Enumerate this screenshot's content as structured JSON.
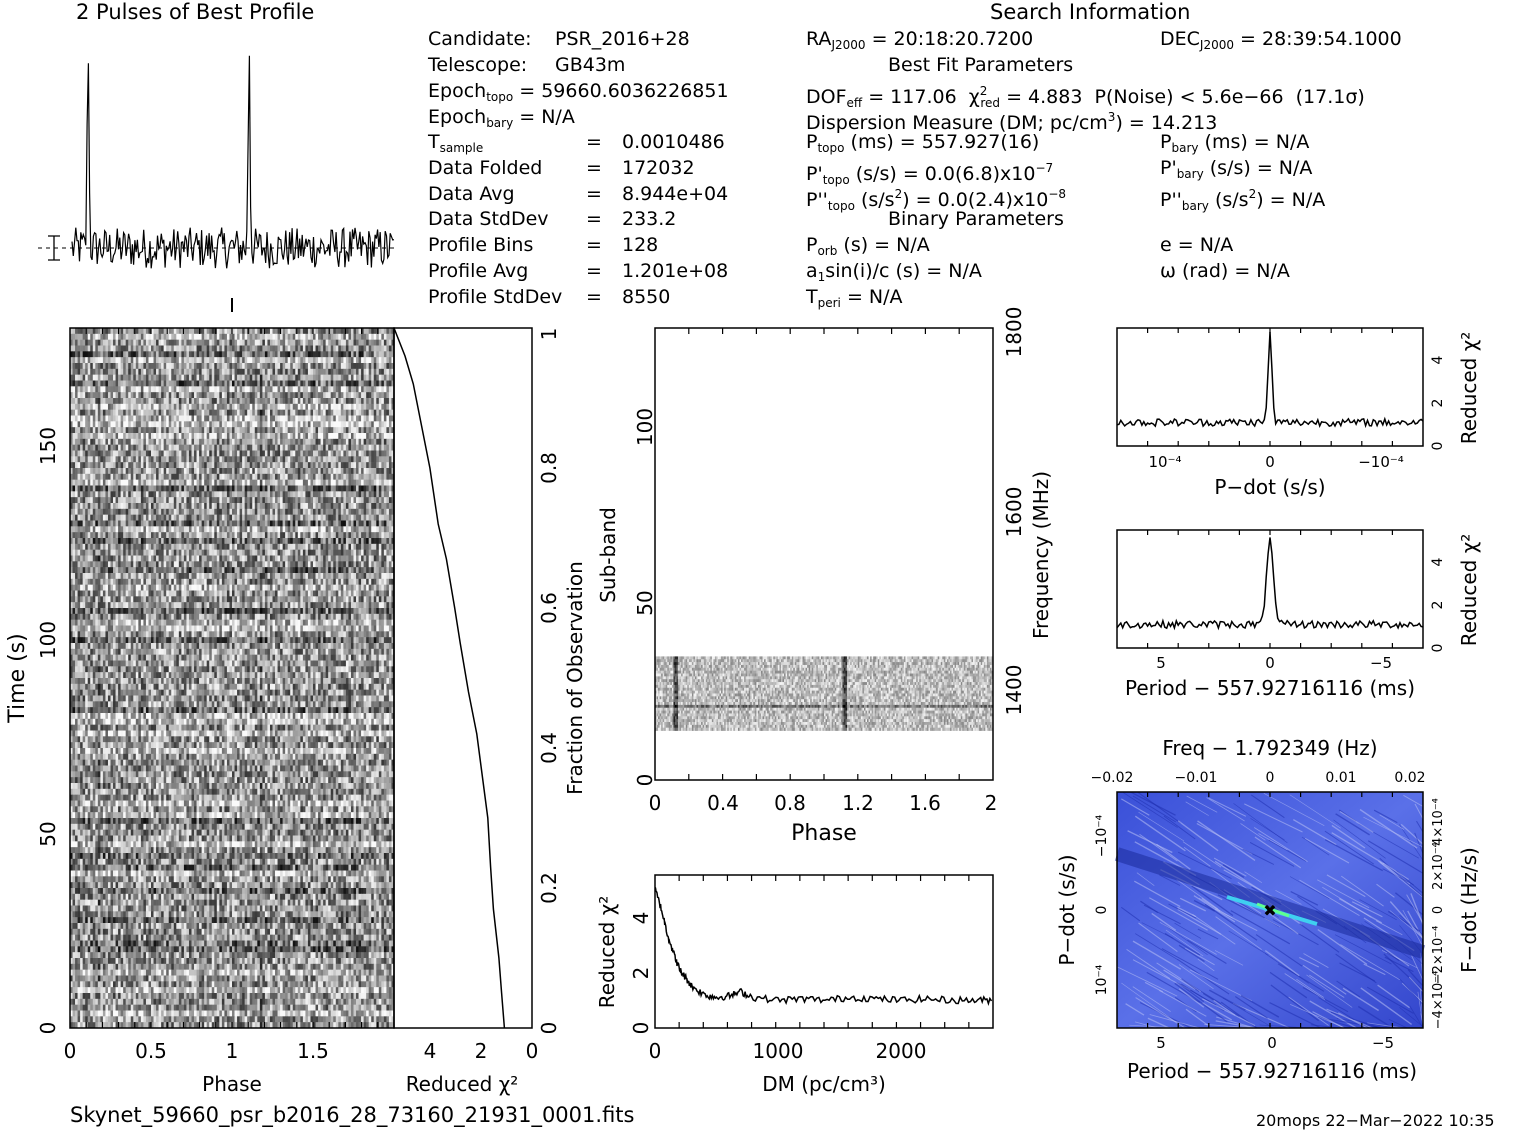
{
  "titles": {
    "profile": "2 Pulses of Best Profile",
    "search": "Search Information",
    "best_fit": "Best Fit Parameters",
    "binary": "Binary Parameters"
  },
  "info_left": [
    {
      "label": "Candidate:",
      "value": "PSR_2016+28"
    },
    {
      "label": "Telescope:",
      "value": "GB43m"
    },
    {
      "label": "Epoch",
      "sub": "topo",
      "value": "= 59660.6036226851"
    },
    {
      "label": "Epoch",
      "sub": "bary",
      "value": "= N/A"
    },
    {
      "label": "T",
      "sub": "sample",
      "eq": "=",
      "value": "0.0010486"
    },
    {
      "label": "Data Folded",
      "eq": "=",
      "value": "172032"
    },
    {
      "label": "Data Avg",
      "eq": "=",
      "value": "8.944e+04"
    },
    {
      "label": "Data StdDev",
      "eq": "=",
      "value": "233.2"
    },
    {
      "label": "Profile Bins",
      "eq": "=",
      "value": "128"
    },
    {
      "label": "Profile Avg",
      "eq": "=",
      "value": "1.201e+08"
    },
    {
      "label": "Profile StdDev",
      "eq": "=",
      "value": "8550"
    }
  ],
  "info_mid": {
    "ra": "= 20:18:20.7200",
    "dof": "= 117.06",
    "chi2": "= 4.883",
    "pnoise": "P(Noise) < 5.6e−66",
    "sigma": "(17.1σ)",
    "dm": "Dispersion Measure (DM; pc/cm",
    "dm_val": ") = 14.213",
    "ptopo": "(ms) =  557.927(16)",
    "pdot_topo": "(s/s) = 0.0(6.8)x10",
    "pdot_exp": "−7",
    "pddot_topo": "(s/s",
    "pddot_val": ") = 0.0(2.4)x10",
    "pddot_exp": "−8",
    "porb": "(s) = N/A",
    "a1": "sin(i)/c (s) = N/A",
    "tperi": "= N/A"
  },
  "info_right": {
    "dec": "= 28:39:54.1000",
    "pbary": "(ms) = N/A",
    "pdot_bary": "(s/s) = N/A",
    "pddot_bary": ") = N/A",
    "e": "e = N/A",
    "omega": "ω (rad) = N/A"
  },
  "footer": {
    "filename": "Skynet_59660_psr_b2016_28_73160_21931_0001.fits",
    "stamp": "20mops 22−Mar−2022 10:35"
  },
  "chart_data": [
    {
      "type": "line",
      "name": "pulse-profile",
      "title": "2 Pulses of Best Profile",
      "x_range": [
        0,
        2
      ],
      "peaks": [
        0.1,
        1.1
      ],
      "peak_height": 1.0,
      "noise": 0.1
    },
    {
      "type": "heatmap",
      "name": "time-vs-phase",
      "xlabel": "Phase",
      "ylabel": "Time (s)",
      "xlim": [
        0,
        2
      ],
      "ylim": [
        0,
        180
      ],
      "xticks": [
        "0",
        "0.5",
        "1",
        "1.5"
      ],
      "yticks": [
        "0",
        "50",
        "100",
        "150"
      ],
      "colormap": "grayscale"
    },
    {
      "type": "line",
      "name": "reduced-chi2-vs-time",
      "xlabel": "Reduced χ²",
      "ylabel": "Fraction of Observation",
      "xlim": [
        5,
        0
      ],
      "ylim": [
        0,
        1
      ],
      "xticks": [
        "4",
        "2",
        "0"
      ],
      "yticks": [
        "0",
        "0.2",
        "0.4",
        "0.6",
        "0.8",
        "1"
      ],
      "x": [
        1.0,
        1.1,
        1.2,
        1.4,
        1.5,
        1.6,
        1.8,
        2.0,
        2.3,
        2.6,
        2.8,
        3.1,
        3.4,
        3.7,
        4.0,
        4.3,
        4.6,
        5.0
      ],
      "y": [
        0.0,
        0.05,
        0.1,
        0.17,
        0.23,
        0.3,
        0.36,
        0.42,
        0.48,
        0.55,
        0.6,
        0.67,
        0.72,
        0.8,
        0.86,
        0.92,
        0.96,
        1.0
      ]
    },
    {
      "type": "heatmap",
      "name": "subband-vs-phase",
      "xlabel": "Phase",
      "ylabel": "Sub-band",
      "y2label": "Frequency (MHz)",
      "xlim": [
        0,
        2
      ],
      "ylim": [
        0,
        128
      ],
      "xticks": [
        "0",
        "0.4",
        "0.8",
        "1.2",
        "1.6",
        "2"
      ],
      "yticks": [
        "0",
        "50",
        "100"
      ],
      "y2ticks": [
        "1400",
        "1600",
        "1800"
      ],
      "band_subbands": [
        14,
        35
      ],
      "pulse_phases": [
        0.12,
        1.12
      ]
    },
    {
      "type": "line",
      "name": "reduced-chi2-vs-dm",
      "xlabel": "DM (pc/cm³)",
      "ylabel": "Reduced χ²",
      "xlim": [
        0,
        2750
      ],
      "ylim": [
        0,
        5.5
      ],
      "xticks": [
        "0",
        "1000",
        "2000"
      ],
      "yticks": [
        "0",
        "2",
        "4"
      ],
      "x": [
        0,
        50,
        100,
        150,
        200,
        250,
        300,
        400,
        500,
        600,
        700,
        800,
        1000,
        1200,
        1400,
        1600,
        1800,
        2000,
        2200,
        2400,
        2600,
        2750
      ],
      "y": [
        5.0,
        4.3,
        3.4,
        2.7,
        2.1,
        1.8,
        1.5,
        1.2,
        1.1,
        1.15,
        1.3,
        1.1,
        1.0,
        1.05,
        1.0,
        1.1,
        1.05,
        1.0,
        1.05,
        1.0,
        1.0,
        1.0
      ]
    },
    {
      "type": "line",
      "name": "reduced-chi2-vs-pdot",
      "xlabel": "P−dot (s/s)",
      "ylabel": "Reduced χ²",
      "xticks": [
        "10⁻⁴",
        "0",
        "−10⁻⁴"
      ],
      "yticks": [
        "0",
        "2",
        "4"
      ],
      "ylim": [
        0,
        5.5
      ],
      "peak": 5.2,
      "baseline": 1.1
    },
    {
      "type": "line",
      "name": "reduced-chi2-vs-period",
      "xlabel": "Period − 557.92716116 (ms)",
      "ylabel": "Reduced χ²",
      "xticks": [
        "5",
        "0",
        "−5"
      ],
      "yticks": [
        "0",
        "2",
        "4"
      ],
      "ylim": [
        0,
        5.5
      ],
      "peak": 5.2,
      "baseline": 1.1
    },
    {
      "type": "heatmap",
      "name": "pdot-vs-period",
      "title": "Freq − 1.792349 (Hz)",
      "xlabel": "Period − 557.92716116 (ms)",
      "ylabel": "P−dot (s/s)",
      "y2label": "F−dot (Hz/s)",
      "xticks": [
        "5",
        "0",
        "−5"
      ],
      "x2ticks": [
        "−0.02",
        "−0.01",
        "0",
        "0.01",
        "0.02"
      ],
      "yticks": [
        "10⁻⁴",
        "0",
        "−10⁻⁴"
      ],
      "y2ticks": [
        "−4×10⁻⁴",
        "−2×10⁻⁴",
        "0",
        "2×10⁻⁴",
        "4×10⁻⁴"
      ],
      "colormap": "blue-cyan"
    }
  ]
}
